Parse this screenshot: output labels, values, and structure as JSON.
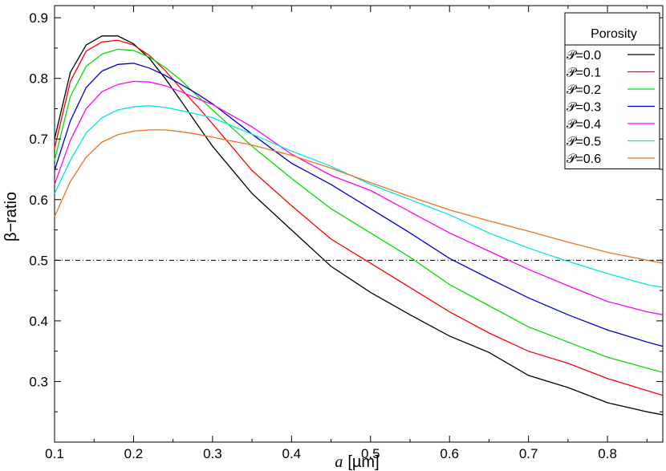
{
  "chart_data": {
    "type": "line",
    "title": "",
    "xlabel_var": "a",
    "xlabel_unit": "[µm]",
    "ylabel": "β−ratio",
    "xlim": [
      0.1,
      0.87
    ],
    "ylim": [
      0.2,
      0.92
    ],
    "xticks": [
      0.1,
      0.2,
      0.3,
      0.4,
      0.5,
      0.6,
      0.7,
      0.8
    ],
    "xtick_labels": [
      "0.1",
      "0.2",
      "0.3",
      "0.4",
      "0.5",
      "0.6",
      "0.7",
      "0.8"
    ],
    "yticks": [
      0.3,
      0.4,
      0.5,
      0.6,
      0.7,
      0.8,
      0.9
    ],
    "ytick_labels": [
      "0.3",
      "0.4",
      "0.5",
      "0.6",
      "0.7",
      "0.8",
      "0.9"
    ],
    "grid": false,
    "legend_title": "Porosity",
    "legend_position": "top-right",
    "reference_line": {
      "y": 0.5,
      "style": "dash-dot",
      "color": "#000000"
    },
    "x": [
      0.1,
      0.12,
      0.14,
      0.16,
      0.18,
      0.2,
      0.22,
      0.24,
      0.26,
      0.28,
      0.3,
      0.35,
      0.4,
      0.45,
      0.5,
      0.55,
      0.6,
      0.65,
      0.7,
      0.75,
      0.8,
      0.85,
      0.87
    ],
    "series": [
      {
        "name": "𝒫=0.0",
        "color": "#000000",
        "values": [
          0.7,
          0.81,
          0.855,
          0.87,
          0.87,
          0.857,
          0.833,
          0.8,
          0.763,
          0.725,
          0.688,
          0.61,
          0.55,
          0.49,
          0.447,
          0.41,
          0.375,
          0.348,
          0.31,
          0.29,
          0.265,
          0.25,
          0.245
        ]
      },
      {
        "name": "𝒫=0.1",
        "color": "#ff0000",
        "values": [
          0.685,
          0.795,
          0.845,
          0.86,
          0.863,
          0.855,
          0.838,
          0.813,
          0.783,
          0.755,
          0.725,
          0.648,
          0.59,
          0.535,
          0.495,
          0.455,
          0.415,
          0.38,
          0.35,
          0.33,
          0.305,
          0.285,
          0.277
        ]
      },
      {
        "name": "𝒫=0.2",
        "color": "#00dd00",
        "values": [
          0.665,
          0.77,
          0.82,
          0.84,
          0.848,
          0.846,
          0.835,
          0.818,
          0.797,
          0.772,
          0.748,
          0.688,
          0.635,
          0.585,
          0.545,
          0.505,
          0.46,
          0.425,
          0.39,
          0.365,
          0.34,
          0.322,
          0.315
        ]
      },
      {
        "name": "𝒫=0.3",
        "color": "#0000cc",
        "values": [
          0.648,
          0.73,
          0.785,
          0.812,
          0.823,
          0.825,
          0.817,
          0.805,
          0.79,
          0.775,
          0.758,
          0.708,
          0.66,
          0.625,
          0.585,
          0.545,
          0.503,
          0.47,
          0.438,
          0.41,
          0.385,
          0.365,
          0.358
        ]
      },
      {
        "name": "𝒫=0.4",
        "color": "#ff00ff",
        "values": [
          0.625,
          0.698,
          0.75,
          0.778,
          0.79,
          0.795,
          0.794,
          0.788,
          0.778,
          0.767,
          0.757,
          0.72,
          0.675,
          0.64,
          0.615,
          0.58,
          0.545,
          0.515,
          0.485,
          0.458,
          0.432,
          0.415,
          0.41
        ]
      },
      {
        "name": "𝒫=0.5",
        "color": "#00e5e5",
        "values": [
          0.61,
          0.665,
          0.71,
          0.735,
          0.748,
          0.753,
          0.755,
          0.752,
          0.747,
          0.741,
          0.735,
          0.708,
          0.68,
          0.655,
          0.625,
          0.6,
          0.575,
          0.545,
          0.52,
          0.498,
          0.478,
          0.46,
          0.455
        ]
      },
      {
        "name": "𝒫=0.6",
        "color": "#f07020",
        "values": [
          0.572,
          0.63,
          0.67,
          0.695,
          0.707,
          0.713,
          0.715,
          0.715,
          0.712,
          0.708,
          0.703,
          0.69,
          0.673,
          0.652,
          0.628,
          0.605,
          0.583,
          0.565,
          0.548,
          0.53,
          0.513,
          0.5,
          0.495
        ]
      }
    ]
  }
}
